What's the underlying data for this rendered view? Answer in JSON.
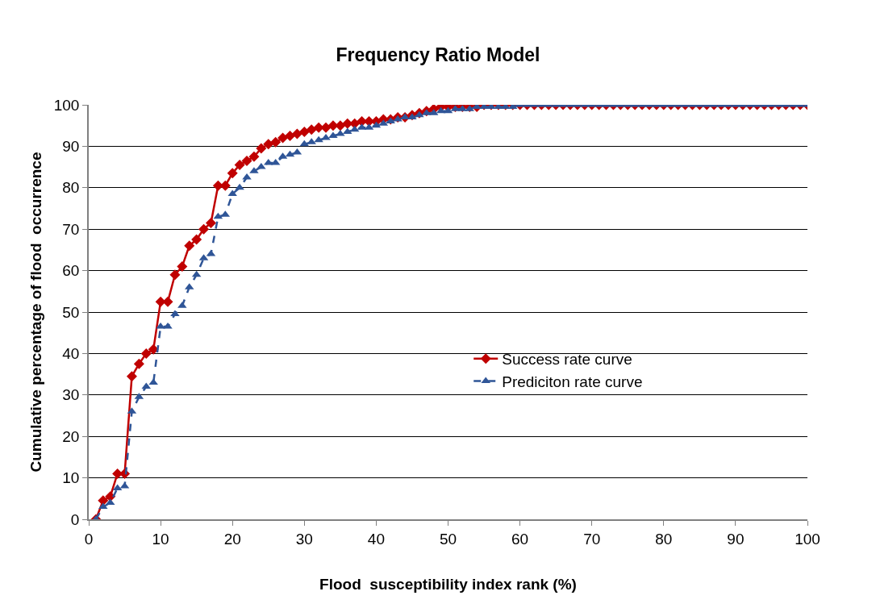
{
  "chart_data": {
    "type": "line",
    "title": "Frequency Ratio Model",
    "xlabel": "Flood  susceptibility index rank (%)",
    "ylabel": "Cumulative percentage of flood  occurrence",
    "x": [
      1,
      2,
      3,
      4,
      5,
      6,
      7,
      8,
      9,
      10,
      11,
      12,
      13,
      14,
      15,
      16,
      17,
      18,
      19,
      20,
      21,
      22,
      23,
      24,
      25,
      26,
      27,
      28,
      29,
      30,
      31,
      32,
      33,
      34,
      35,
      36,
      37,
      38,
      39,
      40,
      41,
      42,
      43,
      44,
      45,
      46,
      47,
      48,
      49,
      50,
      51,
      52,
      53,
      54,
      55,
      56,
      57,
      58,
      59,
      60,
      61,
      62,
      63,
      64,
      65,
      66,
      67,
      68,
      69,
      70,
      71,
      72,
      73,
      74,
      75,
      76,
      77,
      78,
      79,
      80,
      81,
      82,
      83,
      84,
      85,
      86,
      87,
      88,
      89,
      90,
      91,
      92,
      93,
      94,
      95,
      96,
      97,
      98,
      99,
      100
    ],
    "series": [
      {
        "name": "Success rate curve",
        "color": "#c00000",
        "marker": "diamond",
        "line_style": "solid",
        "values": [
          0,
          4.5,
          5.5,
          11,
          11,
          34.5,
          37.5,
          40,
          41,
          52.5,
          52.5,
          59,
          61,
          66,
          67.5,
          70,
          71.5,
          80.5,
          80.5,
          83.5,
          85.5,
          86.5,
          87.5,
          89.5,
          90.5,
          91,
          92,
          92.5,
          93,
          93.5,
          94,
          94.5,
          94.5,
          95,
          95,
          95.5,
          95.5,
          96,
          96,
          96,
          96.5,
          96.5,
          97,
          97,
          97.5,
          98,
          98.5,
          99,
          99.5,
          99.5,
          99.5,
          99.5,
          99.5,
          99.5,
          100,
          100,
          100,
          100,
          100,
          100,
          100,
          100,
          100,
          100,
          100,
          100,
          100,
          100,
          100,
          100,
          100,
          100,
          100,
          100,
          100,
          100,
          100,
          100,
          100,
          100,
          100,
          100,
          100,
          100,
          100,
          100,
          100,
          100,
          100,
          100,
          100,
          100,
          100,
          100,
          100,
          100,
          100,
          100,
          100,
          100
        ]
      },
      {
        "name": "Prediciton rate curve",
        "color": "#2f5597",
        "marker": "triangle",
        "line_style": "dashed",
        "values": [
          0,
          3,
          4,
          7.5,
          8,
          26,
          29.5,
          32,
          33,
          46.5,
          46.5,
          49.5,
          51.5,
          56,
          59,
          63,
          64,
          73,
          73.5,
          78.5,
          80,
          82.5,
          84,
          85,
          86,
          86,
          87.5,
          88,
          88.5,
          90.5,
          91,
          91.5,
          92,
          92.5,
          93,
          93.5,
          94,
          94.5,
          94.5,
          95,
          95.5,
          96,
          96.5,
          97,
          97,
          97.5,
          98,
          98,
          98.5,
          98.5,
          99,
          99,
          99,
          99.5,
          99.5,
          99.5,
          99.5,
          99.5,
          99.5,
          100,
          100,
          100,
          100,
          100,
          100,
          100,
          100,
          100,
          100,
          100,
          100,
          100,
          100,
          100,
          100,
          100,
          100,
          100,
          100,
          100,
          100,
          100,
          100,
          100,
          100,
          100,
          100,
          100,
          100,
          100,
          100,
          100,
          100,
          100,
          100,
          100,
          100,
          100,
          100,
          100
        ]
      }
    ],
    "xlim": [
      0,
      100
    ],
    "xticks": [
      0,
      10,
      20,
      30,
      40,
      50,
      60,
      70,
      80,
      90,
      100
    ],
    "ylim": [
      0,
      100
    ],
    "yticks": [
      0,
      10,
      20,
      30,
      40,
      50,
      60,
      70,
      80,
      90,
      100
    ],
    "grid": "y",
    "legend": "right"
  }
}
